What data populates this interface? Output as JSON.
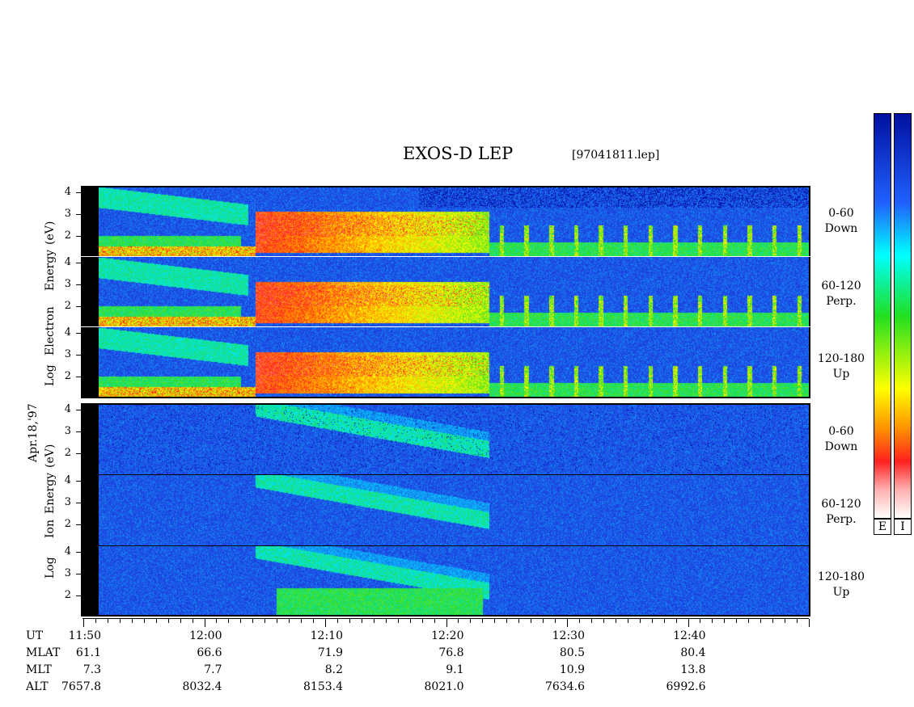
{
  "header": {
    "title": "EXOS-D LEP",
    "file": "[97041811.lep]"
  },
  "date_label": "Apr.18,'97",
  "electron_ylabel": [
    "Log",
    "Electron",
    "Energy",
    "(eV)"
  ],
  "ion_ylabel": [
    "Log",
    "Ion",
    "Energy",
    "(eV)"
  ],
  "pitch_labels": [
    {
      "range": "0-60",
      "dir": "Down"
    },
    {
      "range": "60-120",
      "dir": "Perp."
    },
    {
      "range": "120-180",
      "dir": "Up"
    }
  ],
  "y_ticks": [
    "4",
    "3",
    "2"
  ],
  "colorbar_labels": [
    "E",
    "I"
  ],
  "footer": {
    "row_labels": [
      "UT",
      "MLAT",
      "MLT",
      "ALT"
    ],
    "columns": [
      {
        "ut": "11:50",
        "mlat": "61.1",
        "mlt": "7.3",
        "alt": "7657.8"
      },
      {
        "ut": "12:00",
        "mlat": "66.6",
        "mlt": "7.7",
        "alt": "8032.4"
      },
      {
        "ut": "12:10",
        "mlat": "71.9",
        "mlt": "8.2",
        "alt": "8153.4"
      },
      {
        "ut": "12:20",
        "mlat": "76.8",
        "mlt": "9.1",
        "alt": "8021.0"
      },
      {
        "ut": "12:30",
        "mlat": "80.5",
        "mlt": "10.9",
        "alt": "7634.6"
      },
      {
        "ut": "12:40",
        "mlat": "80.4",
        "mlt": "13.8",
        "alt": "6992.6"
      }
    ]
  },
  "chart_data": {
    "type": "heatmap",
    "title": "EXOS-D LEP",
    "x_label": "UT",
    "x_ticks": [
      "11:50",
      "12:00",
      "12:10",
      "12:20",
      "12:30",
      "12:40"
    ],
    "y_label_electron": "Log Electron Energy (eV)",
    "y_label_ion": "Log Ion Energy (eV)",
    "y_ticks": [
      4,
      3,
      2
    ],
    "panels": [
      {
        "species": "Electron",
        "pitch": "0-60",
        "dir": "Down"
      },
      {
        "species": "Electron",
        "pitch": "60-120",
        "dir": "Perp."
      },
      {
        "species": "Electron",
        "pitch": "120-180",
        "dir": "Up"
      },
      {
        "species": "Ion",
        "pitch": "0-60",
        "dir": "Down"
      },
      {
        "species": "Ion",
        "pitch": "60-120",
        "dir": "Perp."
      },
      {
        "species": "Ion",
        "pitch": "120-180",
        "dir": "Up"
      }
    ],
    "colorbar": {
      "labels": [
        "E",
        "I"
      ],
      "colors": [
        "#ffffff",
        "#ff2020",
        "#ff9000",
        "#ffff00",
        "#20e020",
        "#00ffff",
        "#2060ff",
        "#0010a0"
      ]
    }
  }
}
